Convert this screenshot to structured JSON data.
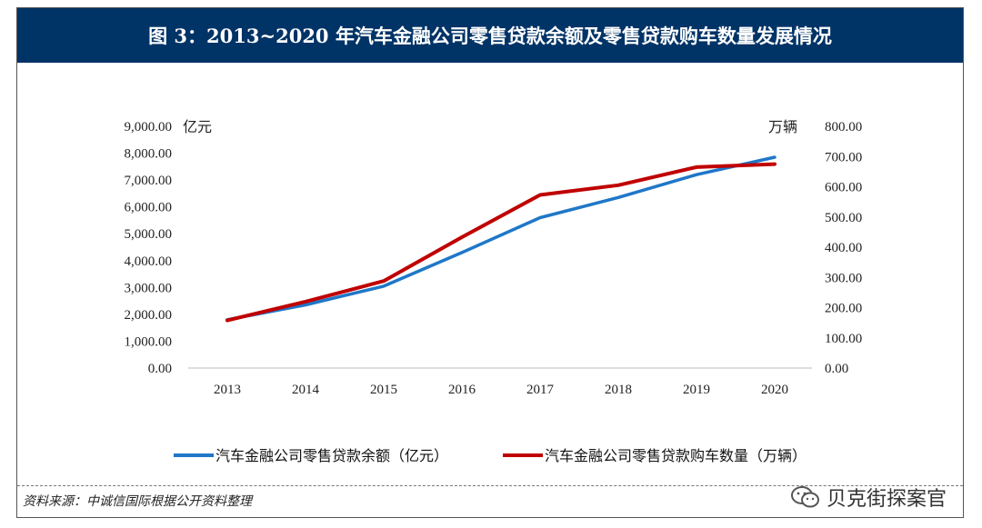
{
  "figure": {
    "title": "图 3：2013~2020 年汽车金融公司零售贷款余额及零售贷款购车数量发展情况"
  },
  "chart_data": {
    "type": "line",
    "x": [
      "2013",
      "2014",
      "2015",
      "2016",
      "2017",
      "2018",
      "2019",
      "2020"
    ],
    "left_axis": {
      "unit": "亿元",
      "ylim": [
        0,
        9000
      ],
      "ticks": [
        "0.00",
        "1,000.00",
        "2,000.00",
        "3,000.00",
        "4,000.00",
        "5,000.00",
        "6,000.00",
        "7,000.00",
        "8,000.00",
        "9,000.00"
      ]
    },
    "right_axis": {
      "unit": "万辆",
      "ylim": [
        0,
        800
      ],
      "ticks": [
        "0.00",
        "100.00",
        "200.00",
        "300.00",
        "400.00",
        "500.00",
        "600.00",
        "700.00",
        "800.00"
      ]
    },
    "series": [
      {
        "name": "汽车金融公司零售贷款余额（亿元）",
        "axis": "left",
        "color": "#1f77c8",
        "values": [
          1800,
          2350,
          3050,
          4300,
          5600,
          6350,
          7200,
          7850
        ]
      },
      {
        "name": "汽车金融公司零售贷款购车数量（万辆）",
        "axis": "right",
        "color": "#c00000",
        "values": [
          158,
          220,
          288,
          433,
          573,
          605,
          665,
          675
        ]
      }
    ],
    "grid": false,
    "legend": "bottom"
  },
  "footer": {
    "source": "资料来源：中诚信国际根据公开资料整理",
    "watermark": "贝克街探案官"
  },
  "icons": {
    "watermark": "wechat-icon"
  }
}
